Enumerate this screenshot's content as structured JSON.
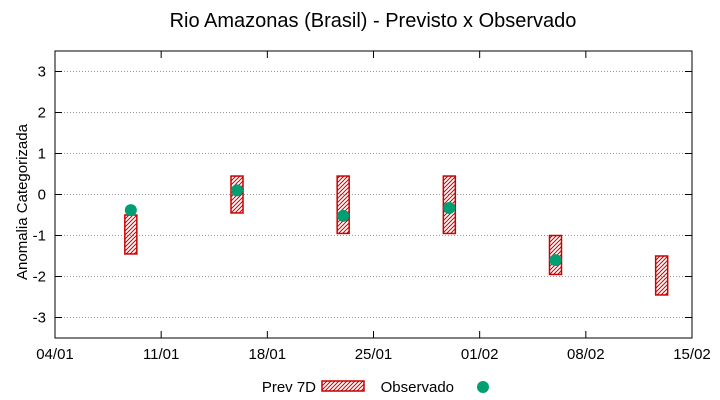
{
  "chart_data": {
    "type": "range-scatter",
    "title": "Rio Amazonas (Brasil) - Previsto x Observado",
    "ylabel": "Anomalia Categorizada",
    "xlabel": "",
    "x_ticks": [
      "04/01",
      "11/01",
      "18/01",
      "25/01",
      "01/02",
      "08/02",
      "15/02"
    ],
    "x_range_days": [
      0,
      42
    ],
    "ylim": [
      -3.5,
      3.5
    ],
    "y_ticks": [
      -3,
      -2,
      -1,
      0,
      1,
      2,
      3
    ],
    "grid": "horizontal-dotted",
    "legend_position": "bottom-center",
    "series": [
      {
        "name": "Prev 7D",
        "kind": "range-bar",
        "color": "#cc0000",
        "points": [
          {
            "day": 5,
            "low": -1.45,
            "high": -0.5
          },
          {
            "day": 12,
            "low": -0.45,
            "high": 0.45
          },
          {
            "day": 19,
            "low": -0.95,
            "high": 0.45
          },
          {
            "day": 26,
            "low": -0.95,
            "high": 0.45
          },
          {
            "day": 33,
            "low": -1.95,
            "high": -1.0
          },
          {
            "day": 40,
            "low": -2.45,
            "high": -1.5
          }
        ]
      },
      {
        "name": "Observado",
        "kind": "point",
        "color": "#009e73",
        "points": [
          {
            "day": 5,
            "value": -0.38
          },
          {
            "day": 12,
            "value": 0.1
          },
          {
            "day": 19,
            "value": -0.52
          },
          {
            "day": 26,
            "value": -0.33
          },
          {
            "day": 33,
            "value": -1.6
          }
        ]
      }
    ]
  }
}
